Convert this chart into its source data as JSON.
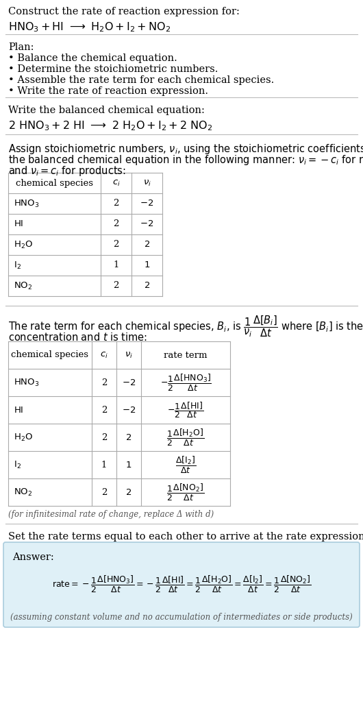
{
  "bg_color": "#ffffff",
  "text_color": "#000000",
  "gray_text": "#555555",
  "table_line_color": "#aaaaaa",
  "answer_bg": "#dff0f7",
  "answer_border": "#aaccdd",
  "title_text": "Construct the rate of reaction expression for:",
  "plan_items": [
    "• Balance the chemical equation.",
    "• Determine the stoichiometric numbers.",
    "• Assemble the rate term for each chemical species.",
    "• Write the rate of reaction expression."
  ],
  "footnote": "(assuming constant volume and no accumulation of intermediates or side products)",
  "infinitesimal_note": "(for infinitesimal rate of change, replace Δ with d)"
}
